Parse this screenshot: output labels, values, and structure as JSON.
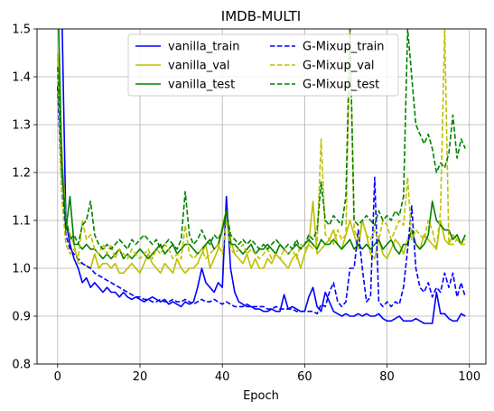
{
  "chart_data": {
    "type": "line",
    "title": "IMDB-MULTI",
    "xlabel": "Epoch",
    "ylabel": "",
    "xlim": [
      -5,
      104
    ],
    "ylim": [
      0.8,
      1.5
    ],
    "xticks": [
      0,
      20,
      40,
      60,
      80,
      100
    ],
    "yticks": [
      0.8,
      0.9,
      1.0,
      1.1,
      1.2,
      1.3,
      1.4,
      1.5
    ],
    "ytick_labels": [
      "0.8",
      "0.9",
      "1.0",
      "1.1",
      "1.2",
      "1.3",
      "1.4",
      "1.5"
    ],
    "grid": true,
    "legend_position": "top-center",
    "legend_columns": 2,
    "x": [
      0,
      1,
      2,
      3,
      4,
      5,
      6,
      7,
      8,
      9,
      10,
      11,
      12,
      13,
      14,
      15,
      16,
      17,
      18,
      19,
      20,
      21,
      22,
      23,
      24,
      25,
      26,
      27,
      28,
      29,
      30,
      31,
      32,
      33,
      34,
      35,
      36,
      37,
      38,
      39,
      40,
      41,
      42,
      43,
      44,
      45,
      46,
      47,
      48,
      49,
      50,
      51,
      52,
      53,
      54,
      55,
      56,
      57,
      58,
      59,
      60,
      61,
      62,
      63,
      64,
      65,
      66,
      67,
      68,
      69,
      70,
      71,
      72,
      73,
      74,
      75,
      76,
      77,
      78,
      79,
      80,
      81,
      82,
      83,
      84,
      85,
      86,
      87,
      88,
      89,
      90,
      91,
      92,
      93,
      94,
      95,
      96,
      97,
      98,
      99
    ],
    "series": [
      {
        "name": "vanilla_train",
        "color": "#0000ff",
        "dash": "solid",
        "values": [
          1.62,
          1.55,
          1.1,
          1.05,
          1.02,
          1.0,
          0.97,
          0.98,
          0.96,
          0.97,
          0.96,
          0.95,
          0.96,
          0.95,
          0.95,
          0.94,
          0.95,
          0.94,
          0.935,
          0.94,
          0.935,
          0.93,
          0.935,
          0.94,
          0.935,
          0.93,
          0.935,
          0.925,
          0.93,
          0.925,
          0.92,
          0.93,
          0.925,
          0.93,
          0.96,
          1.0,
          0.97,
          0.96,
          0.95,
          0.97,
          0.96,
          1.15,
          1.0,
          0.95,
          0.93,
          0.925,
          0.92,
          0.92,
          0.915,
          0.915,
          0.91,
          0.91,
          0.915,
          0.91,
          0.91,
          0.945,
          0.915,
          0.92,
          0.915,
          0.91,
          0.91,
          0.94,
          0.96,
          0.92,
          0.91,
          0.95,
          0.93,
          0.91,
          0.905,
          0.9,
          0.905,
          0.9,
          0.9,
          0.905,
          0.9,
          0.905,
          0.9,
          0.9,
          0.905,
          0.895,
          0.89,
          0.89,
          0.895,
          0.9,
          0.89,
          0.89,
          0.89,
          0.895,
          0.89,
          0.885,
          0.885,
          0.885,
          0.95,
          0.905,
          0.905,
          0.895,
          0.89,
          0.89,
          0.905,
          0.9
        ]
      },
      {
        "name": "vanilla_val",
        "color": "#bfbf00",
        "dash": "solid",
        "values": [
          1.45,
          1.25,
          1.1,
          1.07,
          1.05,
          1.01,
          1.01,
          1.005,
          1.0,
          1.03,
          1.0,
          1.01,
          1.01,
          1.0,
          1.01,
          0.99,
          0.99,
          1.0,
          1.01,
          1.0,
          0.99,
          1.01,
          1.03,
          1.01,
          1.0,
          0.99,
          1.01,
          1.0,
          0.99,
          1.02,
          1.0,
          0.99,
          1.0,
          1.0,
          1.01,
          1.03,
          1.05,
          1.0,
          1.02,
          1.04,
          1.09,
          1.12,
          1.06,
          1.03,
          1.02,
          1.01,
          1.03,
          1.0,
          1.02,
          1.0,
          1.0,
          1.02,
          1.01,
          1.03,
          1.02,
          1.01,
          1.0,
          1.02,
          1.03,
          1.0,
          1.03,
          1.05,
          1.14,
          1.03,
          1.04,
          1.05,
          1.06,
          1.08,
          1.05,
          1.04,
          1.07,
          1.1,
          1.07,
          1.04,
          1.1,
          1.07,
          1.03,
          1.02,
          1.06,
          1.03,
          1.02,
          1.04,
          1.06,
          1.05,
          1.03,
          1.06,
          1.08,
          1.05,
          1.04,
          1.07,
          1.06,
          1.05,
          1.04,
          1.1,
          1.06,
          1.05,
          1.07,
          1.06,
          1.05,
          1.05
        ]
      },
      {
        "name": "vanilla_test",
        "color": "#008000",
        "dash": "solid",
        "values": [
          1.6,
          1.22,
          1.08,
          1.15,
          1.05,
          1.05,
          1.04,
          1.05,
          1.04,
          1.04,
          1.03,
          1.02,
          1.03,
          1.02,
          1.03,
          1.04,
          1.02,
          1.03,
          1.02,
          1.03,
          1.04,
          1.03,
          1.02,
          1.03,
          1.04,
          1.05,
          1.03,
          1.04,
          1.05,
          1.03,
          1.04,
          1.05,
          1.05,
          1.04,
          1.03,
          1.04,
          1.05,
          1.06,
          1.04,
          1.05,
          1.08,
          1.12,
          1.05,
          1.05,
          1.04,
          1.03,
          1.04,
          1.05,
          1.03,
          1.04,
          1.04,
          1.05,
          1.04,
          1.03,
          1.05,
          1.04,
          1.03,
          1.04,
          1.05,
          1.04,
          1.05,
          1.06,
          1.05,
          1.04,
          1.06,
          1.05,
          1.05,
          1.06,
          1.05,
          1.04,
          1.05,
          1.06,
          1.04,
          1.05,
          1.04,
          1.05,
          1.04,
          1.05,
          1.06,
          1.04,
          1.05,
          1.06,
          1.04,
          1.03,
          1.05,
          1.05,
          1.08,
          1.05,
          1.04,
          1.05,
          1.07,
          1.14,
          1.1,
          1.09,
          1.08,
          1.08,
          1.06,
          1.07,
          1.05,
          1.07
        ]
      },
      {
        "name": "G-Mixup_train",
        "color": "#0000ff",
        "dash": "dashed",
        "values": [
          1.38,
          1.16,
          1.07,
          1.04,
          1.03,
          1.02,
          1.01,
          1.005,
          1.0,
          0.99,
          0.985,
          0.98,
          0.975,
          0.97,
          0.965,
          0.96,
          0.955,
          0.95,
          0.945,
          0.94,
          0.94,
          0.935,
          0.935,
          0.93,
          0.93,
          0.935,
          0.93,
          0.93,
          0.935,
          0.93,
          0.93,
          0.935,
          0.93,
          0.925,
          0.93,
          0.935,
          0.93,
          0.93,
          0.935,
          0.93,
          0.925,
          0.93,
          0.925,
          0.92,
          0.92,
          0.92,
          0.925,
          0.92,
          0.92,
          0.92,
          0.92,
          0.915,
          0.915,
          0.92,
          0.915,
          0.915,
          0.915,
          0.915,
          0.91,
          0.91,
          0.91,
          0.91,
          0.91,
          0.905,
          0.925,
          0.92,
          0.95,
          0.97,
          0.93,
          0.92,
          0.93,
          1.0,
          1.0,
          1.08,
          1.0,
          0.93,
          0.94,
          1.19,
          0.93,
          0.92,
          0.93,
          0.92,
          0.93,
          0.925,
          0.96,
          1.04,
          1.13,
          1.0,
          0.96,
          0.95,
          0.97,
          0.94,
          0.96,
          0.95,
          0.99,
          0.96,
          0.99,
          0.94,
          0.97,
          0.94
        ]
      },
      {
        "name": "G-Mixup_val",
        "color": "#bfbf00",
        "dash": "dashed",
        "values": [
          1.44,
          1.15,
          1.05,
          1.03,
          1.04,
          1.02,
          1.1,
          1.06,
          1.07,
          1.04,
          1.03,
          1.05,
          1.03,
          1.05,
          1.02,
          1.04,
          1.03,
          1.02,
          1.04,
          1.03,
          1.02,
          1.03,
          1.04,
          1.02,
          1.04,
          1.03,
          1.05,
          1.04,
          1.02,
          1.03,
          1.02,
          1.09,
          1.03,
          1.02,
          1.03,
          1.04,
          1.02,
          1.03,
          1.04,
          1.05,
          1.03,
          1.1,
          1.04,
          1.03,
          1.04,
          1.05,
          1.03,
          1.04,
          1.03,
          1.02,
          1.03,
          1.04,
          1.02,
          1.03,
          1.02,
          1.04,
          1.03,
          1.04,
          1.02,
          1.05,
          1.04,
          1.05,
          1.04,
          1.05,
          1.27,
          1.07,
          1.06,
          1.05,
          1.08,
          1.06,
          1.07,
          1.5,
          1.08,
          1.06,
          1.1,
          1.07,
          1.06,
          1.08,
          1.06,
          1.1,
          1.09,
          1.06,
          1.08,
          1.1,
          1.09,
          1.19,
          1.06,
          1.08,
          1.07,
          1.06,
          1.1,
          1.08,
          1.04,
          1.12,
          1.5,
          1.05,
          1.05,
          1.06,
          1.05,
          1.06
        ]
      },
      {
        "name": "G-Mixup_test",
        "color": "#008000",
        "dash": "dashed",
        "values": [
          1.42,
          1.2,
          1.11,
          1.06,
          1.07,
          1.05,
          1.09,
          1.1,
          1.14,
          1.07,
          1.05,
          1.04,
          1.05,
          1.04,
          1.05,
          1.06,
          1.05,
          1.04,
          1.06,
          1.05,
          1.06,
          1.07,
          1.06,
          1.05,
          1.06,
          1.04,
          1.05,
          1.06,
          1.05,
          1.04,
          1.06,
          1.16,
          1.07,
          1.05,
          1.06,
          1.08,
          1.06,
          1.05,
          1.07,
          1.06,
          1.08,
          1.12,
          1.07,
          1.06,
          1.05,
          1.06,
          1.05,
          1.06,
          1.05,
          1.04,
          1.05,
          1.04,
          1.05,
          1.06,
          1.05,
          1.04,
          1.05,
          1.04,
          1.06,
          1.04,
          1.05,
          1.07,
          1.06,
          1.08,
          1.18,
          1.1,
          1.09,
          1.11,
          1.1,
          1.09,
          1.15,
          1.5,
          1.1,
          1.09,
          1.1,
          1.11,
          1.1,
          1.09,
          1.12,
          1.1,
          1.11,
          1.1,
          1.12,
          1.11,
          1.15,
          1.5,
          1.4,
          1.3,
          1.28,
          1.26,
          1.28,
          1.25,
          1.2,
          1.22,
          1.21,
          1.24,
          1.32,
          1.23,
          1.27,
          1.25
        ]
      }
    ]
  }
}
